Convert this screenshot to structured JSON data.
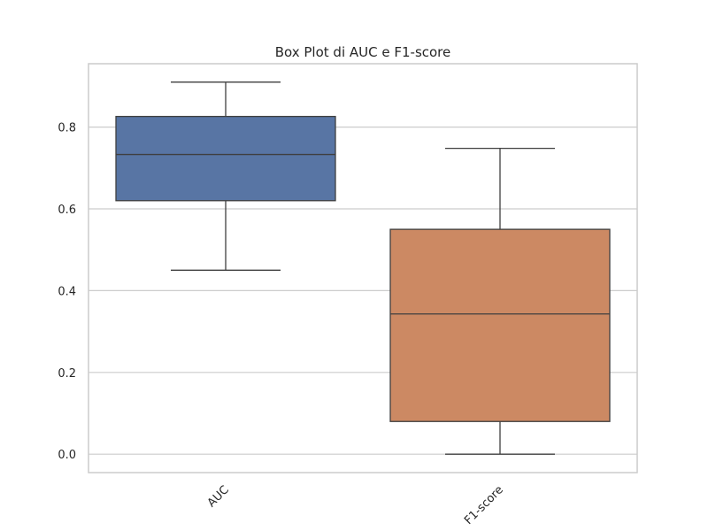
{
  "chart_data": {
    "type": "box",
    "title": "Box Plot di AUC e F1-score",
    "xlabel": "",
    "ylabel": "",
    "categories": [
      "AUC",
      "F1-score"
    ],
    "ylim": [
      -0.045,
      0.955
    ],
    "yticks": [
      0.0,
      0.2,
      0.4,
      0.6,
      0.8
    ],
    "ytick_labels": [
      "0.0",
      "0.2",
      "0.4",
      "0.6",
      "0.8"
    ],
    "grid": "y",
    "boxes": [
      {
        "category": "AUC",
        "whisker_low": 0.45,
        "q1": 0.62,
        "median": 0.733,
        "q3": 0.826,
        "whisker_high": 0.91,
        "color": "#5875a4"
      },
      {
        "category": "F1-score",
        "whisker_low": 0.0,
        "q1": 0.08,
        "median": 0.343,
        "q3": 0.55,
        "whisker_high": 0.748,
        "color": "#cc8963"
      }
    ]
  }
}
